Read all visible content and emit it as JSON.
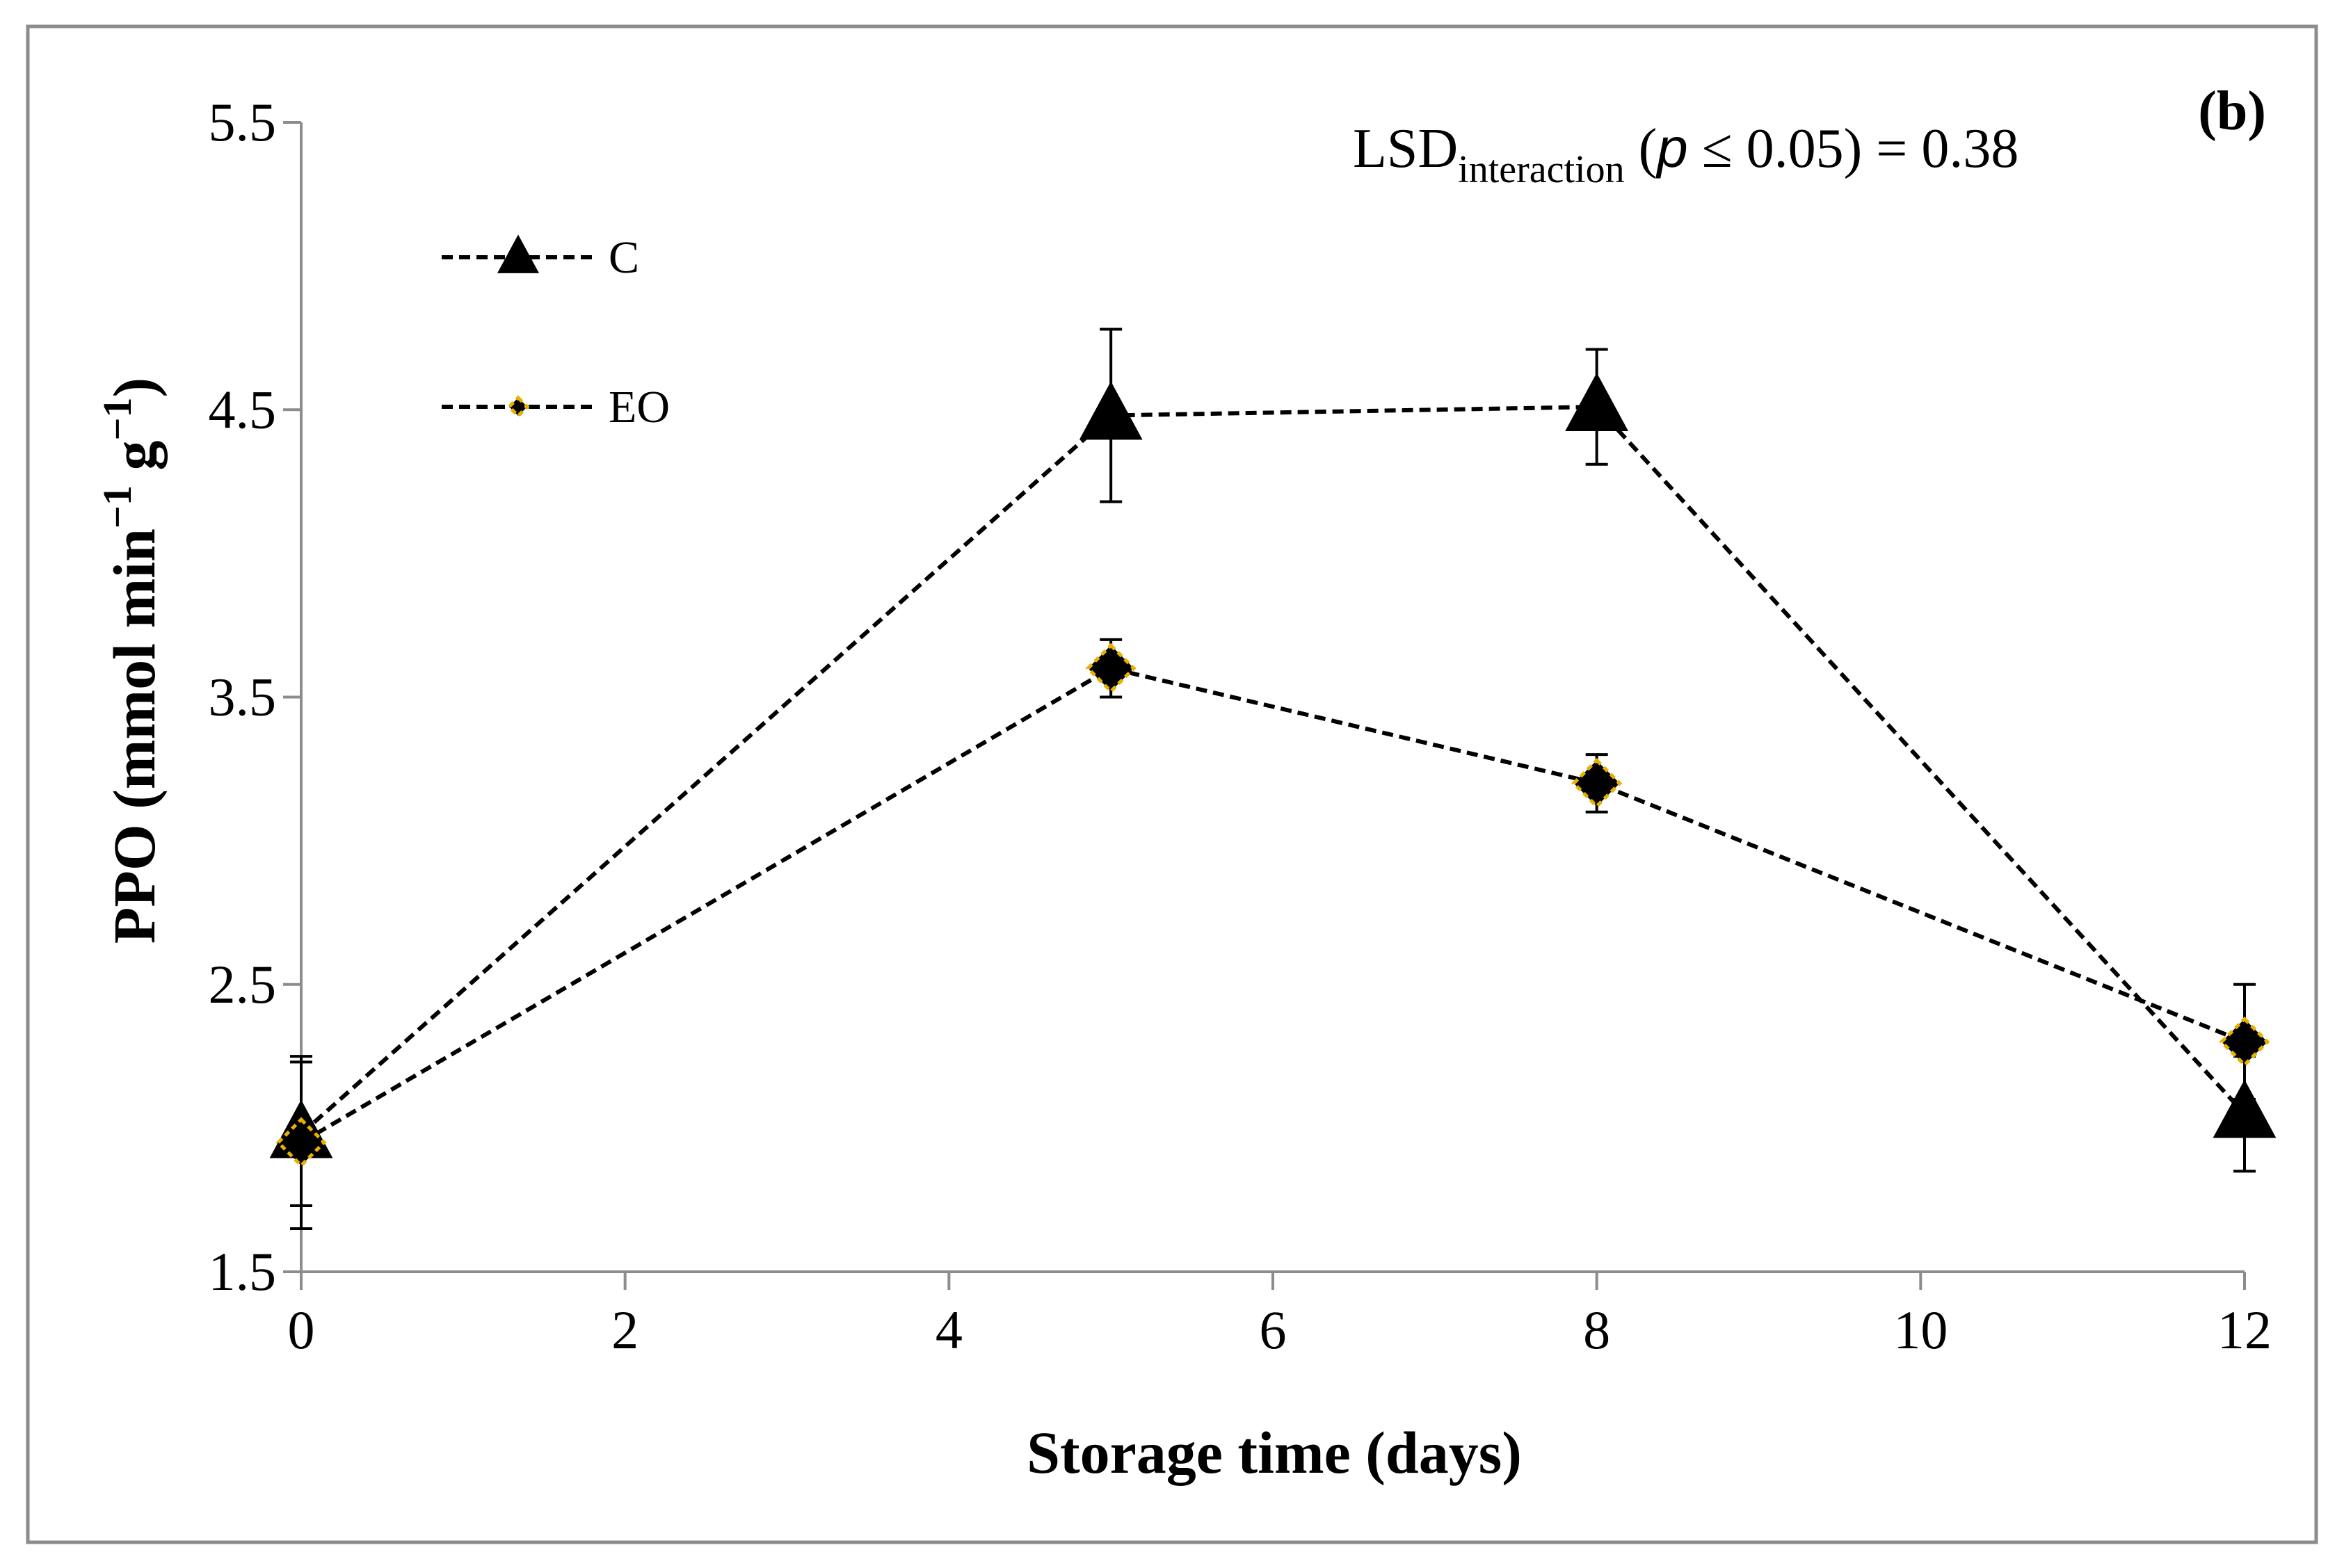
{
  "chart_data": {
    "type": "line",
    "panel_label": "(b)",
    "annotation": {
      "prefix": "LSD",
      "subscript": "interaction",
      "open": " (",
      "p": "p",
      "condition": " ≤ 0.05) = 0.38"
    },
    "xlabel": "Storage time (days)",
    "ylabel": {
      "main": "PPO (mmol min",
      "sup1": "−1",
      "mid": " g",
      "sup2": "−1",
      "end": ")"
    },
    "xlim": [
      0,
      12
    ],
    "ylim": [
      1.5,
      5.5
    ],
    "x_ticks": [
      0,
      2,
      4,
      6,
      8,
      10,
      12
    ],
    "x_tick_labels": [
      "0",
      "2",
      "4",
      "6",
      "8",
      "10",
      "12"
    ],
    "y_ticks": [
      1.5,
      2.5,
      3.5,
      4.5,
      5.5
    ],
    "y_tick_labels": [
      "1.5",
      "2.5",
      "3.5",
      "4.5",
      "5.5"
    ],
    "x": [
      0,
      5,
      8,
      12
    ],
    "series": [
      {
        "name": "C",
        "marker": "triangle",
        "values": [
          1.98,
          4.48,
          4.51,
          2.05
        ],
        "errors": [
          0.25,
          0.3,
          0.2,
          0.2
        ],
        "marker_color": "#000000",
        "edge_color": "#000000"
      },
      {
        "name": "EO",
        "marker": "diamond",
        "values": [
          1.95,
          3.6,
          3.2,
          2.3
        ],
        "errors": [
          0.3,
          0.1,
          0.1,
          0.2
        ],
        "marker_color": "#000000",
        "edge_color": "#e8b100"
      }
    ],
    "legend_position": "upper-left",
    "grid": false
  }
}
